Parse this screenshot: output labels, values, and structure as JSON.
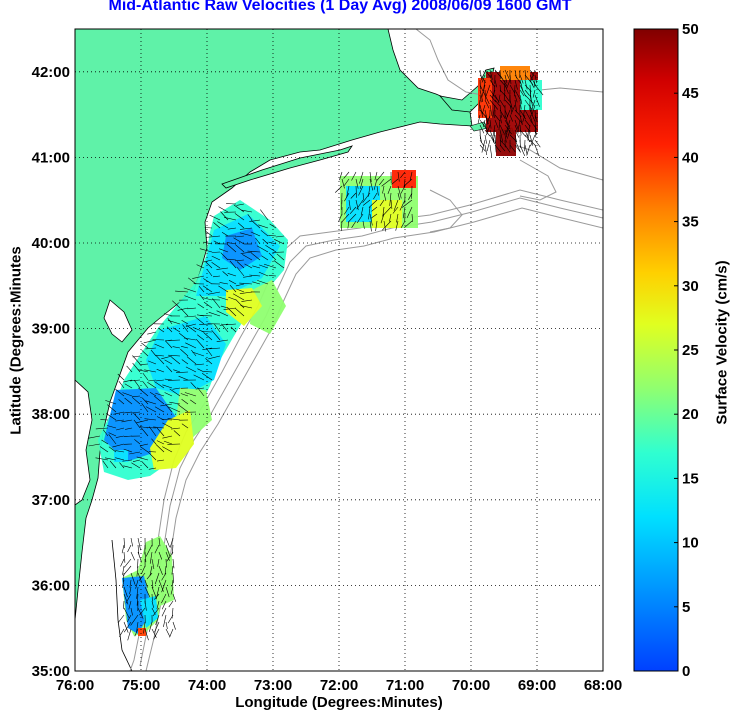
{
  "title": "Mid-Atlantic Raw Velocities (1 Day Avg) 2008/06/09 1600 GMT",
  "x_axis": {
    "label": "Longitude (Degrees:Minutes)",
    "ticks": [
      "76:00",
      "75:00",
      "74:00",
      "73:00",
      "72:00",
      "71:00",
      "70:00",
      "69:00",
      "68:00"
    ],
    "range_deg_west": [
      76,
      68
    ]
  },
  "y_axis": {
    "label": "Latitude (Degrees:Minutes",
    "ticks": [
      "35:00",
      "36:00",
      "37:00",
      "38:00",
      "39:00",
      "40:00",
      "41:00",
      "42:00"
    ],
    "range_deg_north": [
      35,
      42.5
    ]
  },
  "colorbar": {
    "label": "Surface Velocity (cm/s)",
    "ticks": [
      "0",
      "5",
      "10",
      "15",
      "20",
      "25",
      "30",
      "35",
      "40",
      "45",
      "50"
    ],
    "range": [
      0,
      50
    ],
    "colormap": "jet"
  },
  "colors": {
    "land": "#5ff2a8",
    "ocean": "#ffffff",
    "title": "#0000ff",
    "bathymetry": "#9a9a9a",
    "grid": "#000000"
  }
}
